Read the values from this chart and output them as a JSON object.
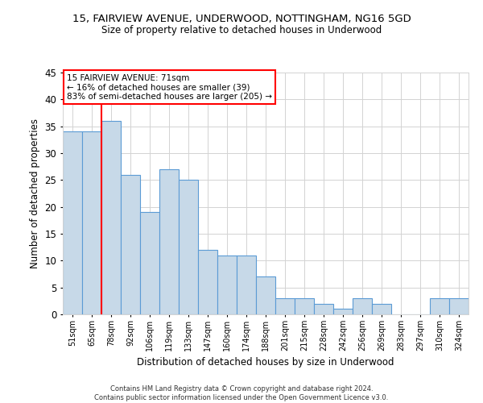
{
  "title1": "15, FAIRVIEW AVENUE, UNDERWOOD, NOTTINGHAM, NG16 5GD",
  "title2": "Size of property relative to detached houses in Underwood",
  "xlabel": "Distribution of detached houses by size in Underwood",
  "ylabel": "Number of detached properties",
  "categories": [
    "51sqm",
    "65sqm",
    "78sqm",
    "92sqm",
    "106sqm",
    "119sqm",
    "133sqm",
    "147sqm",
    "160sqm",
    "174sqm",
    "188sqm",
    "201sqm",
    "215sqm",
    "228sqm",
    "242sqm",
    "256sqm",
    "269sqm",
    "283sqm",
    "297sqm",
    "310sqm",
    "324sqm"
  ],
  "values": [
    34,
    34,
    36,
    26,
    19,
    27,
    25,
    12,
    11,
    11,
    7,
    3,
    3,
    2,
    1,
    3,
    2,
    0,
    0,
    3,
    3
  ],
  "bar_color": "#c7d9e8",
  "bar_edge_color": "#5b9bd5",
  "vline_x": 1.5,
  "annotation_title": "15 FAIRVIEW AVENUE: 71sqm",
  "annotation_line1": "← 16% of detached houses are smaller (39)",
  "annotation_line2": "83% of semi-detached houses are larger (205) →",
  "annotation_box_color": "red",
  "ylim": [
    0,
    45
  ],
  "yticks": [
    0,
    5,
    10,
    15,
    20,
    25,
    30,
    35,
    40,
    45
  ],
  "footer1": "Contains HM Land Registry data © Crown copyright and database right 2024.",
  "footer2": "Contains public sector information licensed under the Open Government Licence v3.0."
}
